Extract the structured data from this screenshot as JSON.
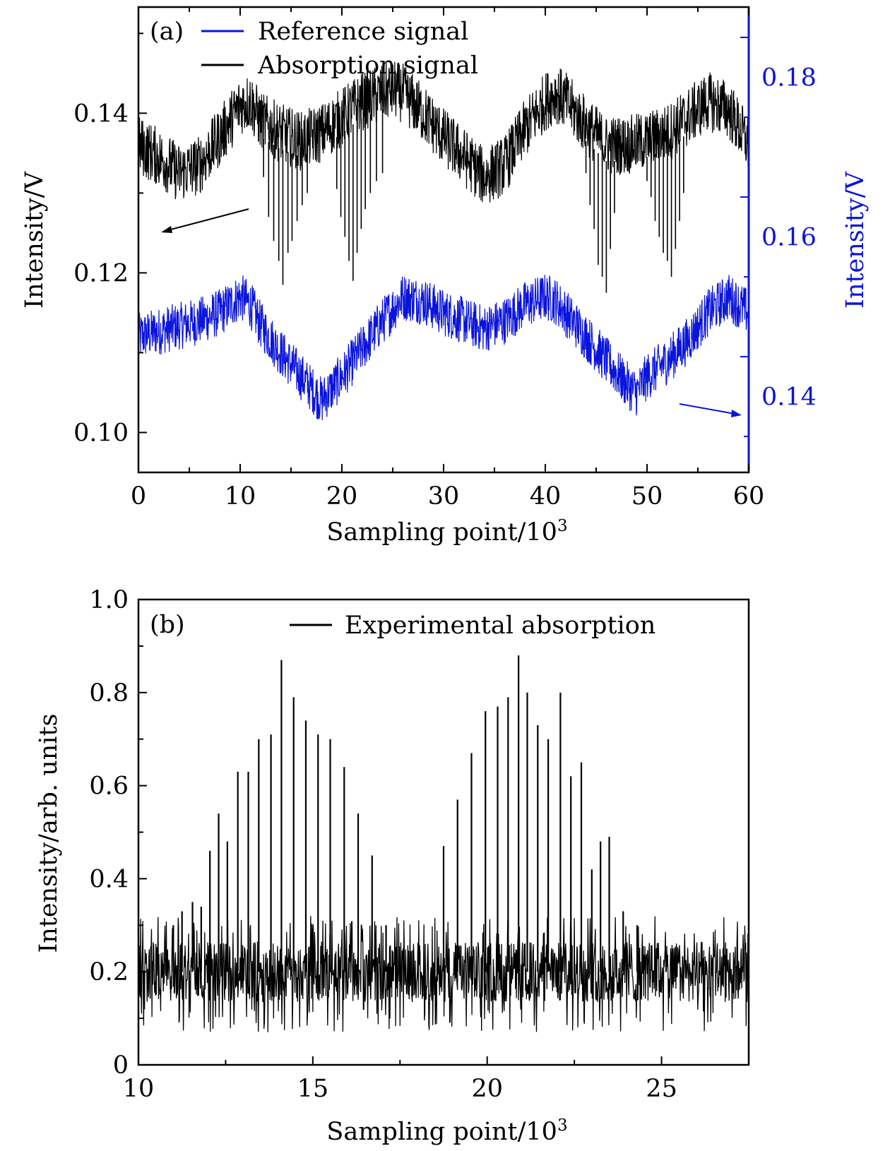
{
  "chart_data": [
    {
      "panel": "(a)",
      "type": "line",
      "xlabel_base": "Sampling point/10",
      "xlabel_sup": "3",
      "ylabel": "Intensity/V",
      "y2label": "Intensity/V",
      "xlim": [
        0,
        60
      ],
      "ylim": [
        0.095,
        0.1533
      ],
      "y2lim": [
        0.1305,
        0.1888
      ],
      "x_ticks": [
        "0",
        "10",
        "20",
        "30",
        "40",
        "50",
        "60"
      ],
      "y_ticks": [
        "0.10",
        "0.12",
        "0.14"
      ],
      "y2_ticks": [
        "0.14",
        "0.16",
        "0.18"
      ],
      "legend_position": "top-left",
      "series": [
        {
          "name": "Reference signal",
          "color": "#0a14dc",
          "axis": "right",
          "x": [
            0,
            3,
            6,
            8,
            10,
            11,
            12,
            14,
            16,
            18,
            20,
            22,
            24,
            26,
            28,
            30,
            32,
            34,
            36,
            38,
            40,
            41,
            42,
            44,
            46,
            48,
            49,
            50,
            52,
            54,
            56,
            58,
            60
          ],
          "y": [
            0.1475,
            0.1485,
            0.1495,
            0.1505,
            0.1525,
            0.1515,
            0.149,
            0.1455,
            0.1425,
            0.1395,
            0.1425,
            0.146,
            0.1495,
            0.1525,
            0.152,
            0.1505,
            0.1495,
            0.1485,
            0.1495,
            0.1515,
            0.1525,
            0.152,
            0.1505,
            0.1475,
            0.1445,
            0.1415,
            0.1405,
            0.1425,
            0.1445,
            0.147,
            0.1505,
            0.1525,
            0.1505
          ]
        },
        {
          "name": "Absorption signal",
          "color": "#000000",
          "axis": "left",
          "x": [
            0,
            2,
            4,
            6,
            8,
            10,
            11,
            12,
            14,
            16,
            18,
            20,
            22,
            24,
            25,
            26,
            28,
            30,
            32,
            34,
            36,
            38,
            40,
            41,
            42,
            44,
            46,
            48,
            50,
            52,
            54,
            56,
            58,
            60
          ],
          "y": [
            0.136,
            0.1345,
            0.1325,
            0.1335,
            0.137,
            0.141,
            0.1415,
            0.139,
            0.1375,
            0.1365,
            0.1375,
            0.1395,
            0.1415,
            0.1425,
            0.143,
            0.1425,
            0.14,
            0.137,
            0.1345,
            0.132,
            0.1335,
            0.138,
            0.1415,
            0.1425,
            0.1415,
            0.1385,
            0.136,
            0.136,
            0.1365,
            0.1375,
            0.1395,
            0.1415,
            0.1405,
            0.136
          ],
          "absorption_dips_x": [
            12.3,
            12.8,
            13.3,
            13.8,
            14.2,
            14.7,
            15.1,
            15.6,
            16.1,
            16.6,
            19.5,
            19.9,
            20.3,
            20.7,
            21.1,
            21.5,
            21.9,
            22.3,
            22.8,
            23.4,
            24.0,
            44.0,
            44.4,
            44.8,
            45.2,
            45.6,
            46.0,
            46.4,
            46.8,
            50.0,
            50.4,
            50.8,
            51.2,
            51.6,
            52.0,
            52.4,
            52.8,
            53.2,
            53.6
          ],
          "absorption_dips_min": [
            0.132,
            0.127,
            0.124,
            0.1215,
            0.1185,
            0.1225,
            0.124,
            0.1265,
            0.1285,
            0.13,
            0.1305,
            0.127,
            0.1245,
            0.1215,
            0.119,
            0.1225,
            0.1255,
            0.128,
            0.13,
            0.1315,
            0.1325,
            0.1325,
            0.1285,
            0.1255,
            0.121,
            0.1195,
            0.1175,
            0.123,
            0.1275,
            0.1315,
            0.1295,
            0.1265,
            0.1245,
            0.1225,
            0.1215,
            0.1195,
            0.123,
            0.1265,
            0.13
          ]
        }
      ]
    },
    {
      "panel": "(b)",
      "type": "line",
      "xlabel_base": "Sampling point/10",
      "xlabel_sup": "3",
      "ylabel": "Intensity/arb. units",
      "xlim": [
        10,
        27.5
      ],
      "ylim": [
        0,
        1.0
      ],
      "x_ticks": [
        "10",
        "15",
        "20",
        "25"
      ],
      "y_ticks": [
        "0",
        "0.2",
        "0.4",
        "0.6",
        "0.8",
        "1.0"
      ],
      "legend_position": "top-center",
      "series": [
        {
          "name": "Experimental absorption",
          "color": "#000000",
          "baseline": 0.2,
          "noise_range": [
            0.07,
            0.32
          ],
          "peaks_x": [
            11.0,
            11.25,
            11.55,
            11.8,
            12.05,
            12.3,
            12.55,
            12.85,
            13.15,
            13.45,
            13.8,
            14.1,
            14.45,
            14.8,
            15.15,
            15.5,
            15.9,
            16.3,
            16.7,
            17.1,
            18.75,
            19.15,
            19.55,
            19.95,
            20.3,
            20.6,
            20.9,
            21.15,
            21.45,
            21.75,
            22.1,
            22.4,
            22.7,
            23.0,
            23.25,
            23.5,
            23.9,
            24.3
          ],
          "peaks_y": [
            0.3,
            0.33,
            0.35,
            0.34,
            0.46,
            0.54,
            0.48,
            0.63,
            0.63,
            0.7,
            0.71,
            0.87,
            0.79,
            0.74,
            0.71,
            0.7,
            0.64,
            0.54,
            0.45,
            0.3,
            0.47,
            0.57,
            0.67,
            0.76,
            0.77,
            0.79,
            0.88,
            0.8,
            0.73,
            0.7,
            0.8,
            0.62,
            0.65,
            0.42,
            0.48,
            0.49,
            0.33,
            0.3
          ]
        }
      ]
    }
  ]
}
